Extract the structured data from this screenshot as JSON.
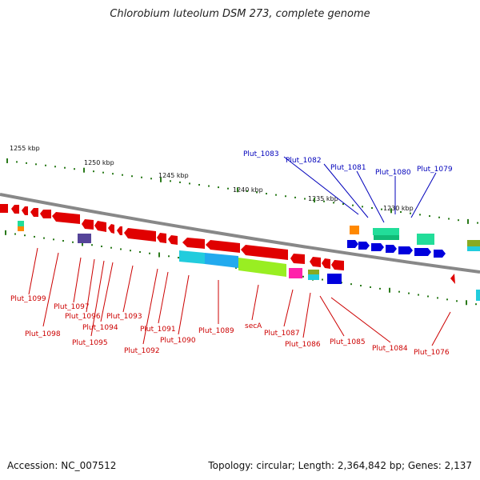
{
  "title": "Chlorobium luteolum DSM 273, complete genome",
  "accession": "Accession: NC_007512",
  "summary": "Topology: circular; Length: 2,364,842 bp; Genes: 2,137",
  "scale_labels": [
    "1255 kbp",
    "1250 kbp",
    "1245 kbp",
    "1240 kbp",
    "1235 kbp",
    "1230 kbp"
  ],
  "genes_forward": [
    "Plut_1083",
    "Plut_1082",
    "Plut_1081",
    "Plut_1080",
    "Plut_1079"
  ],
  "genes_reverse": [
    "Plut_1099",
    "Plut_1098",
    "Plut_1097",
    "Plut_1096",
    "Plut_1095",
    "Plut_1094",
    "Plut_1093",
    "Plut_1092",
    "Plut_1091",
    "Plut_1090",
    "Plut_1089",
    "secA",
    "Plut_1087",
    "Plut_1086",
    "Plut_1085",
    "Plut_1084",
    "Plut_1076"
  ],
  "colors": {
    "reverse_strand": "#e00000",
    "forward_strand": "#0000dd",
    "backbone": "#888888",
    "tick": "#2a7a1a",
    "cog_cyan": "#22ccdd",
    "cog_lime": "#99ee22",
    "cog_teal": "#22dd99",
    "cog_purple": "#554499",
    "cog_orange": "#ff8800",
    "cog_magenta": "#ff22aa"
  }
}
